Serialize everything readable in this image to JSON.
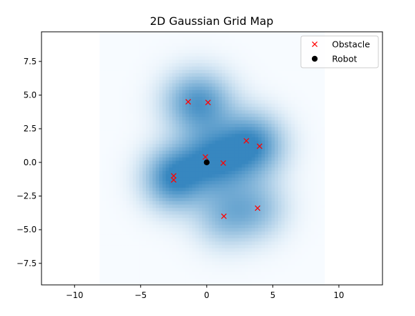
{
  "chart_data": {
    "type": "scatter",
    "title": "2D Gaussian Grid Map",
    "xlabel": "",
    "ylabel": "",
    "xlim": [
      -12.5,
      13.3
    ],
    "ylim": [
      -9.1,
      9.7
    ],
    "x_ticks": [
      -10,
      -5,
      0,
      5,
      10
    ],
    "x_tick_labels": [
      "−10",
      "−5",
      "0",
      "5",
      "10"
    ],
    "y_ticks": [
      -7.5,
      -5.0,
      -2.5,
      0.0,
      2.5,
      5.0,
      7.5
    ],
    "y_tick_labels": [
      "−7.5",
      "−5.0",
      "−2.5",
      "0.0",
      "2.5",
      "5.0",
      "7.5"
    ],
    "grid": false,
    "legend_position": "top-right",
    "heatmap": {
      "extent_x": [
        -8.1,
        8.9
      ],
      "extent_y": [
        -9.1,
        9.7
      ],
      "colormap": "Blues",
      "sigma": 1.6
    },
    "series": [
      {
        "name": "Obstacle",
        "marker": "x",
        "color": "#ff0000",
        "points": [
          {
            "x": -1.4,
            "y": 4.5
          },
          {
            "x": 0.1,
            "y": 4.45
          },
          {
            "x": 3.0,
            "y": 1.6
          },
          {
            "x": 4.0,
            "y": 1.2
          },
          {
            "x": -0.1,
            "y": 0.4
          },
          {
            "x": 1.25,
            "y": -0.05
          },
          {
            "x": -2.5,
            "y": -1.0
          },
          {
            "x": -2.5,
            "y": -1.3
          },
          {
            "x": 3.85,
            "y": -3.4
          },
          {
            "x": 1.3,
            "y": -4.0
          }
        ]
      },
      {
        "name": "Robot",
        "marker": "o",
        "color": "#000000",
        "points": [
          {
            "x": 0.0,
            "y": 0.0
          }
        ]
      }
    ]
  }
}
